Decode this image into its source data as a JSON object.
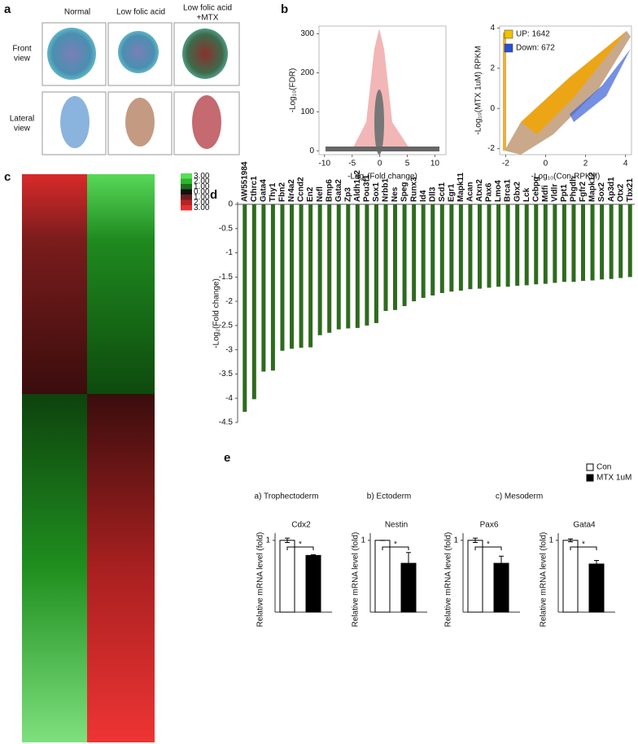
{
  "figure": {
    "letters": [
      "a",
      "b",
      "c",
      "d",
      "e"
    ],
    "panel_a": {
      "columns": [
        "Normal",
        "Low folic acid",
        "Low folic acid",
        "+MTX"
      ],
      "rows": [
        "Front",
        "view",
        "Lateral",
        "view"
      ]
    },
    "panel_e": {
      "groups": [
        "a) Trophectoderm",
        "b) Ectoderm",
        "c) Mesoderm"
      ],
      "legend": [
        {
          "name": "Con",
          "color": "#ffffff"
        },
        {
          "name": "MTX 1uM",
          "color": "#000000"
        }
      ]
    }
  },
  "chart_data": [
    {
      "type": "scatter",
      "xlabel": "-Log₂(Fold change)",
      "ylabel": "-Log₁₀(FDR)",
      "xlim": [
        -11,
        12
      ],
      "xticks": [
        -10,
        -5,
        0,
        5,
        10
      ],
      "ylim": [
        -10,
        320
      ],
      "yticks": [
        0,
        100,
        200,
        300
      ]
    },
    {
      "type": "scatter",
      "xlabel": "-Log₁₀(Con-RPKM)",
      "ylabel": "-Log₁₀(MTX 1uM) RPKM",
      "xlim": [
        -2.3,
        4.3
      ],
      "xticks": [
        -2,
        0,
        2,
        4
      ],
      "ylim": [
        -2.3,
        4.1
      ],
      "yticks": [
        -2,
        0,
        2,
        4
      ],
      "legend": [
        {
          "name": "UP: 1642",
          "color": "#f2c200"
        },
        {
          "name": "Down: 672",
          "color": "#2a4fd6"
        }
      ]
    },
    {
      "type": "heatmap",
      "colorbar": [
        {
          "label": "3.00",
          "color": "#55e055"
        },
        {
          "label": "2.00",
          "color": "#2fb52f"
        },
        {
          "label": "1.00",
          "color": "#1d6e1d"
        },
        {
          "label": "0.00",
          "color": "#111111"
        },
        {
          "label": "1.00",
          "color": "#6e1c1c"
        },
        {
          "label": "2.00",
          "color": "#b52424"
        },
        {
          "label": "3.00",
          "color": "#e53030"
        }
      ]
    },
    {
      "type": "bar",
      "ylabel": "-Log₂(Fold change)",
      "color": "#2e6b1e",
      "categories": [
        "AW551984",
        "Cthrc1",
        "Gata4",
        "Thy1",
        "Fbn2",
        "Nr4a2",
        "Ccnd2",
        "En2",
        "Nefl",
        "Bmp6",
        "Gata2",
        "Zp3",
        "Aldh1a2",
        "Pou3f1",
        "Sox1",
        "Nrbb1",
        "Nes",
        "Speg",
        "Runx3",
        "Id4",
        "Dll3",
        "Scd1",
        "Egr1",
        "Mapk11",
        "Acan",
        "Atxn2",
        "Pax6",
        "Lmo4",
        "Brca1",
        "Gbx2",
        "Lck",
        "Cebpg",
        "Mdfi",
        "Vldlr",
        "Ppt1",
        "Phgdh",
        "Fgfr2",
        "Mapk12",
        "Sox2",
        "Ap3d1",
        "Otx2",
        "Tbx21"
      ],
      "values": [
        -4.28,
        -4.02,
        -3.45,
        -3.43,
        -3.02,
        -2.98,
        -2.96,
        -2.95,
        -2.7,
        -2.65,
        -2.58,
        -2.56,
        -2.55,
        -2.5,
        -2.45,
        -2.2,
        -2.18,
        -2.1,
        -2.0,
        -1.93,
        -1.88,
        -1.83,
        -1.8,
        -1.78,
        -1.75,
        -1.74,
        -1.72,
        -1.7,
        -1.7,
        -1.68,
        -1.67,
        -1.65,
        -1.64,
        -1.62,
        -1.6,
        -1.6,
        -1.58,
        -1.57,
        -1.55,
        -1.54,
        -1.52,
        -1.5
      ],
      "ylim": [
        -4.5,
        0
      ],
      "yticks": [
        0,
        -0.5,
        -1,
        -1.5,
        -2,
        -2.5,
        -3,
        -3.5,
        -4,
        -4.5
      ]
    },
    {
      "type": "bar",
      "title": "Cdx2",
      "ylabel": "Relative mRNA  level (fold)",
      "annotation": "*",
      "values": [
        1.0,
        0.79
      ],
      "errors": [
        0.03,
        0.01
      ],
      "ylim": [
        0,
        1.1
      ],
      "yticks": [
        1
      ]
    },
    {
      "type": "bar",
      "title": "Nestin",
      "ylabel": "Relative mRNA  level (fold)",
      "annotation": "*",
      "values": [
        1.0,
        0.68
      ],
      "errors": [
        0.0,
        0.15
      ],
      "ylim": [
        0,
        1.1
      ],
      "yticks": [
        1
      ]
    },
    {
      "type": "bar",
      "title": "Pax6",
      "ylabel": "Relative mRNA  level (fold)",
      "annotation": "*",
      "values": [
        1.0,
        0.68
      ],
      "errors": [
        0.03,
        0.1
      ],
      "ylim": [
        0,
        1.1
      ],
      "yticks": [
        1
      ]
    },
    {
      "type": "bar",
      "title": "Gata4",
      "ylabel": "Relative mRNA  level (fold)",
      "annotation": "*",
      "values": [
        1.0,
        0.67
      ],
      "errors": [
        0.02,
        0.05
      ],
      "ylim": [
        0,
        1.1
      ],
      "yticks": [
        1
      ]
    }
  ]
}
